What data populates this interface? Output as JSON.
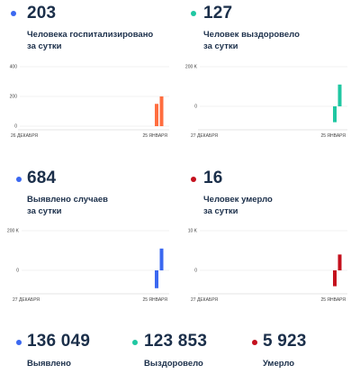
{
  "colors": {
    "hospitalized": "#ff6e40",
    "recovered": "#1fc7a2",
    "cases": "#3b68f0",
    "deaths": "#c4101d"
  },
  "panels": {
    "hospitalized": {
      "value": "203",
      "label": "Человека госпитализировано\nза сутки",
      "x_start": "26 ДЕКАБРЯ",
      "x_end": "25 ЯНВАРЯ",
      "y_ticks": [
        "400",
        "200",
        "0"
      ]
    },
    "recovered": {
      "value": "127",
      "label": "Человек выздоровело\nза сутки",
      "x_start": "27 ДЕКАБРЯ",
      "x_end": "25 ЯНВАРЯ",
      "y_ticks": [
        "200 K",
        "0"
      ]
    },
    "cases": {
      "value": "684",
      "label": "Выявлено случаев\nза сутки",
      "x_start": "27 ДЕКАБРЯ",
      "x_end": "25 ЯНВАРЯ",
      "y_ticks": [
        "200 K",
        "0"
      ]
    },
    "deaths": {
      "value": "16",
      "label": "Человек умерло\nза сутки",
      "x_start": "27 ДЕКАБРЯ",
      "x_end": "25 ЯНВАРЯ",
      "y_ticks": [
        "10 K",
        "0"
      ]
    }
  },
  "totals": {
    "cases": {
      "value": "136 049",
      "label": "Выявлено"
    },
    "recovered": {
      "value": "123 853",
      "label": "Выздоровело"
    },
    "deaths": {
      "value": "5 923",
      "label": "Умерло"
    }
  },
  "chart_data": [
    {
      "type": "bar",
      "id": "hospitalized",
      "ylim": [
        0,
        400
      ],
      "values": [
        150,
        200
      ]
    },
    {
      "type": "bar",
      "id": "recovered",
      "ylim": [
        -100000,
        200000
      ],
      "values": [
        -80000,
        110000
      ]
    },
    {
      "type": "bar",
      "id": "cases",
      "ylim": [
        -100000,
        200000
      ],
      "values": [
        -90000,
        110000
      ]
    },
    {
      "type": "bar",
      "id": "deaths",
      "ylim": [
        -5000,
        10000
      ],
      "values": [
        -4000,
        4000
      ]
    }
  ]
}
